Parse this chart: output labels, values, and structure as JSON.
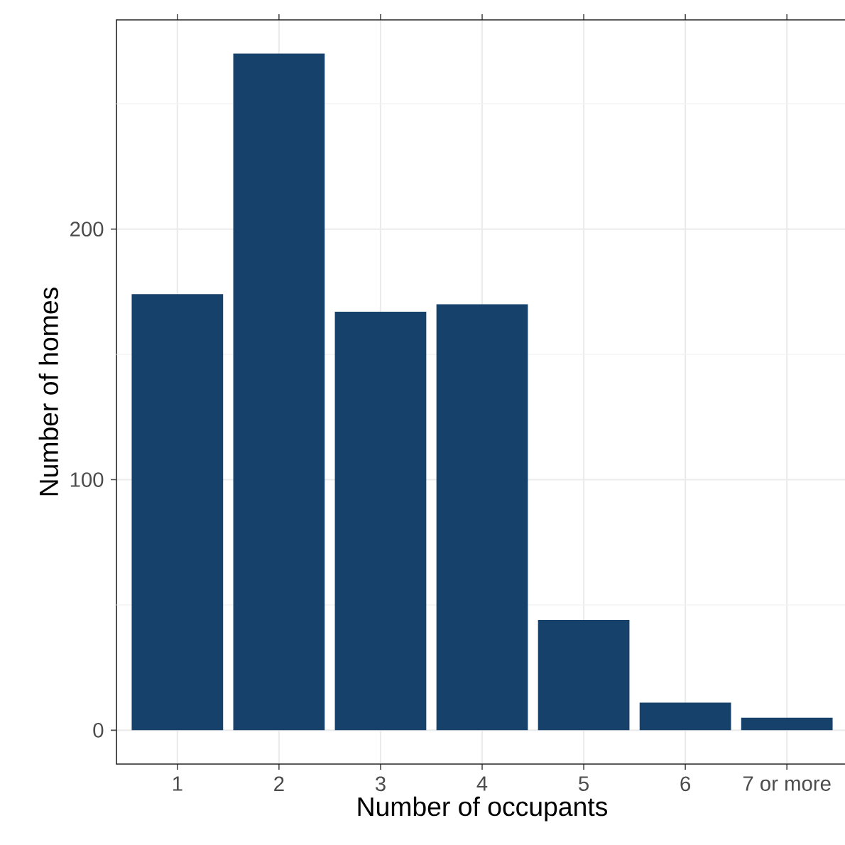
{
  "chart_data": {
    "type": "bar",
    "xlabel": "Number of occupants",
    "ylabel": "Number of homes",
    "categories": [
      "1",
      "2",
      "3",
      "4",
      "5",
      "6",
      "7 or more"
    ],
    "values": [
      174,
      270,
      167,
      170,
      44,
      11,
      5
    ],
    "color": "#15416b",
    "ylim": [
      -13.5,
      283.5
    ],
    "yticks": [
      0,
      {
        "value": 50,
        "label": null
      },
      100,
      {
        "value": 150,
        "label": null
      },
      200,
      {
        "value": 250,
        "label": null
      }
    ],
    "grid": true
  }
}
